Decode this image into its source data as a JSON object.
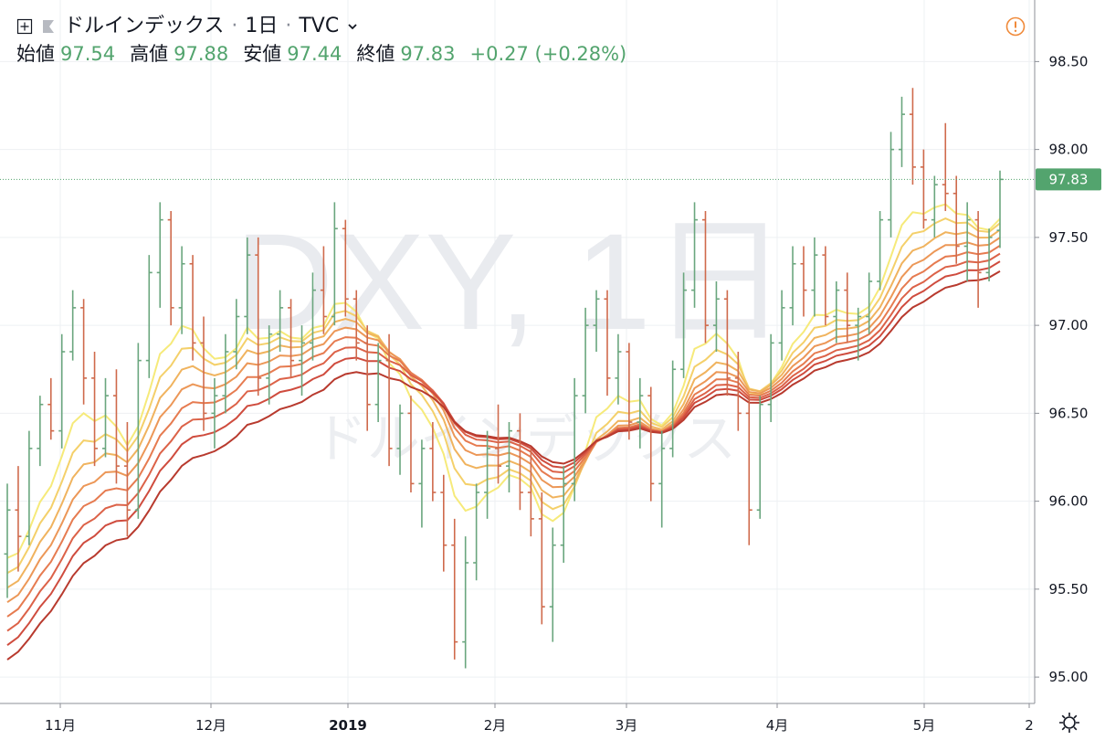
{
  "header": {
    "symbol_name": "ドルインデックス",
    "interval": "1日",
    "exchange": "TVC",
    "open_label": "始値",
    "open_value": "97.54",
    "high_label": "高値",
    "high_value": "97.88",
    "low_label": "安値",
    "low_value": "97.44",
    "close_label": "終値",
    "close_value": "97.83",
    "change": "+0.27 (+0.28%)"
  },
  "watermark": {
    "main": "DXY, 1日",
    "sub": "ドルインデックス"
  },
  "price_tag": "97.83",
  "colors": {
    "up": "#6aa67e",
    "down": "#cf6a4c",
    "grid": "#eef0f3",
    "axis_text": "#131722",
    "price_tag_bg": "#53a46e"
  },
  "chart_data": {
    "type": "ohlc_bar_with_ribbon",
    "x_labels": [
      "11月",
      "12月",
      "2019",
      "2月",
      "3月",
      "4月",
      "5月",
      "2"
    ],
    "y_ticks": [
      "95.00",
      "95.50",
      "96.00",
      "96.50",
      "97.00",
      "97.50",
      "98.00",
      "98.50"
    ],
    "ylim": [
      94.85,
      98.85
    ],
    "last_close": 97.83,
    "bars": [
      [
        95.7,
        96.1,
        95.45,
        95.95
      ],
      [
        95.95,
        96.2,
        95.6,
        95.8
      ],
      [
        95.8,
        96.4,
        95.75,
        96.3
      ],
      [
        96.3,
        96.6,
        96.2,
        96.55
      ],
      [
        96.55,
        96.7,
        96.35,
        96.4
      ],
      [
        96.4,
        96.95,
        96.3,
        96.85
      ],
      [
        96.85,
        97.2,
        96.8,
        97.1
      ],
      [
        97.1,
        97.15,
        96.55,
        96.7
      ],
      [
        96.7,
        96.85,
        96.2,
        96.3
      ],
      [
        96.3,
        96.7,
        96.25,
        96.6
      ],
      [
        96.6,
        96.75,
        96.1,
        96.2
      ],
      [
        96.2,
        96.45,
        95.8,
        95.95
      ],
      [
        95.95,
        96.9,
        95.9,
        96.8
      ],
      [
        96.8,
        97.4,
        96.7,
        97.3
      ],
      [
        97.3,
        97.7,
        97.1,
        97.6
      ],
      [
        97.6,
        97.65,
        97.0,
        97.1
      ],
      [
        97.1,
        97.45,
        96.95,
        97.35
      ],
      [
        97.35,
        97.4,
        96.8,
        96.9
      ],
      [
        96.9,
        97.05,
        96.4,
        96.5
      ],
      [
        96.5,
        96.7,
        96.3,
        96.6
      ],
      [
        96.6,
        96.95,
        96.5,
        96.85
      ],
      [
        96.85,
        97.15,
        96.75,
        97.05
      ],
      [
        97.05,
        97.5,
        96.95,
        97.4
      ],
      [
        97.4,
        97.5,
        96.6,
        96.7
      ],
      [
        96.7,
        97.0,
        96.55,
        96.95
      ],
      [
        96.95,
        97.2,
        96.85,
        97.1
      ],
      [
        97.1,
        97.15,
        96.7,
        96.8
      ],
      [
        96.8,
        97.0,
        96.6,
        96.9
      ],
      [
        96.9,
        97.3,
        96.8,
        97.2
      ],
      [
        97.2,
        97.45,
        96.95,
        97.05
      ],
      [
        97.05,
        97.7,
        97.0,
        97.55
      ],
      [
        97.55,
        97.6,
        97.05,
        97.15
      ],
      [
        97.15,
        97.2,
        96.8,
        96.9
      ],
      [
        96.9,
        97.0,
        96.4,
        96.55
      ],
      [
        96.55,
        96.9,
        96.45,
        96.8
      ],
      [
        96.8,
        96.95,
        96.2,
        96.3
      ],
      [
        96.3,
        96.55,
        96.15,
        96.5
      ],
      [
        96.5,
        96.6,
        96.05,
        96.1
      ],
      [
        96.1,
        96.35,
        95.85,
        96.3
      ],
      [
        96.3,
        96.45,
        96.0,
        96.05
      ],
      [
        96.05,
        96.15,
        95.6,
        95.75
      ],
      [
        95.75,
        95.9,
        95.1,
        95.2
      ],
      [
        95.2,
        95.8,
        95.05,
        95.65
      ],
      [
        95.65,
        96.1,
        95.55,
        96.05
      ],
      [
        96.05,
        96.4,
        95.9,
        96.3
      ],
      [
        96.3,
        96.55,
        96.1,
        96.2
      ],
      [
        96.2,
        96.45,
        96.05,
        96.4
      ],
      [
        96.4,
        96.5,
        95.95,
        96.05
      ],
      [
        96.05,
        96.3,
        95.8,
        95.9
      ],
      [
        95.9,
        96.05,
        95.3,
        95.4
      ],
      [
        95.4,
        95.85,
        95.2,
        95.75
      ],
      [
        95.75,
        96.2,
        95.65,
        96.1
      ],
      [
        96.1,
        96.7,
        96.0,
        96.6
      ],
      [
        96.6,
        97.1,
        96.5,
        97.0
      ],
      [
        97.0,
        97.2,
        96.85,
        97.15
      ],
      [
        97.15,
        97.2,
        96.6,
        96.7
      ],
      [
        96.7,
        96.95,
        96.55,
        96.85
      ],
      [
        96.85,
        96.9,
        96.35,
        96.45
      ],
      [
        96.45,
        96.7,
        96.3,
        96.6
      ],
      [
        96.6,
        96.65,
        96.0,
        96.1
      ],
      [
        96.1,
        96.4,
        95.85,
        96.3
      ],
      [
        96.3,
        96.8,
        96.25,
        96.75
      ],
      [
        96.75,
        97.3,
        96.7,
        97.2
      ],
      [
        97.2,
        97.7,
        97.1,
        97.6
      ],
      [
        97.6,
        97.65,
        96.9,
        97.0
      ],
      [
        97.0,
        97.25,
        96.85,
        97.15
      ],
      [
        97.15,
        97.2,
        96.6,
        96.7
      ],
      [
        96.7,
        96.85,
        96.4,
        96.5
      ],
      [
        96.5,
        96.6,
        95.75,
        95.95
      ],
      [
        95.95,
        96.6,
        95.9,
        96.55
      ],
      [
        96.55,
        96.95,
        96.45,
        96.9
      ],
      [
        96.9,
        97.2,
        96.8,
        97.1
      ],
      [
        97.1,
        97.45,
        97.0,
        97.35
      ],
      [
        97.35,
        97.45,
        97.05,
        97.2
      ],
      [
        97.2,
        97.5,
        97.05,
        97.4
      ],
      [
        97.4,
        97.45,
        97.0,
        97.05
      ],
      [
        97.05,
        97.25,
        96.9,
        97.2
      ],
      [
        97.2,
        97.3,
        96.9,
        97.0
      ],
      [
        97.0,
        97.1,
        96.8,
        97.05
      ],
      [
        97.05,
        97.3,
        96.95,
        97.25
      ],
      [
        97.25,
        97.65,
        97.2,
        97.6
      ],
      [
        97.6,
        98.1,
        97.5,
        98.0
      ],
      [
        98.0,
        98.3,
        97.9,
        98.2
      ],
      [
        98.2,
        98.35,
        97.8,
        97.9
      ],
      [
        97.9,
        98.0,
        97.55,
        97.6
      ],
      [
        97.6,
        97.85,
        97.5,
        97.8
      ],
      [
        97.8,
        98.15,
        97.65,
        97.75
      ],
      [
        97.75,
        97.85,
        97.35,
        97.45
      ],
      [
        97.45,
        97.7,
        97.25,
        97.6
      ],
      [
        97.6,
        97.65,
        97.1,
        97.3
      ],
      [
        97.3,
        97.55,
        97.25,
        97.5
      ],
      [
        97.54,
        97.88,
        97.44,
        97.83
      ]
    ],
    "ribbon": {
      "periods": [
        8,
        11,
        14,
        17,
        20,
        23,
        26,
        30
      ],
      "colors": [
        "#f6ea7a",
        "#f4d06a",
        "#f0b35e",
        "#ec9757",
        "#e67b50",
        "#dc6248",
        "#cf4c3e",
        "#b83a2e"
      ]
    }
  }
}
